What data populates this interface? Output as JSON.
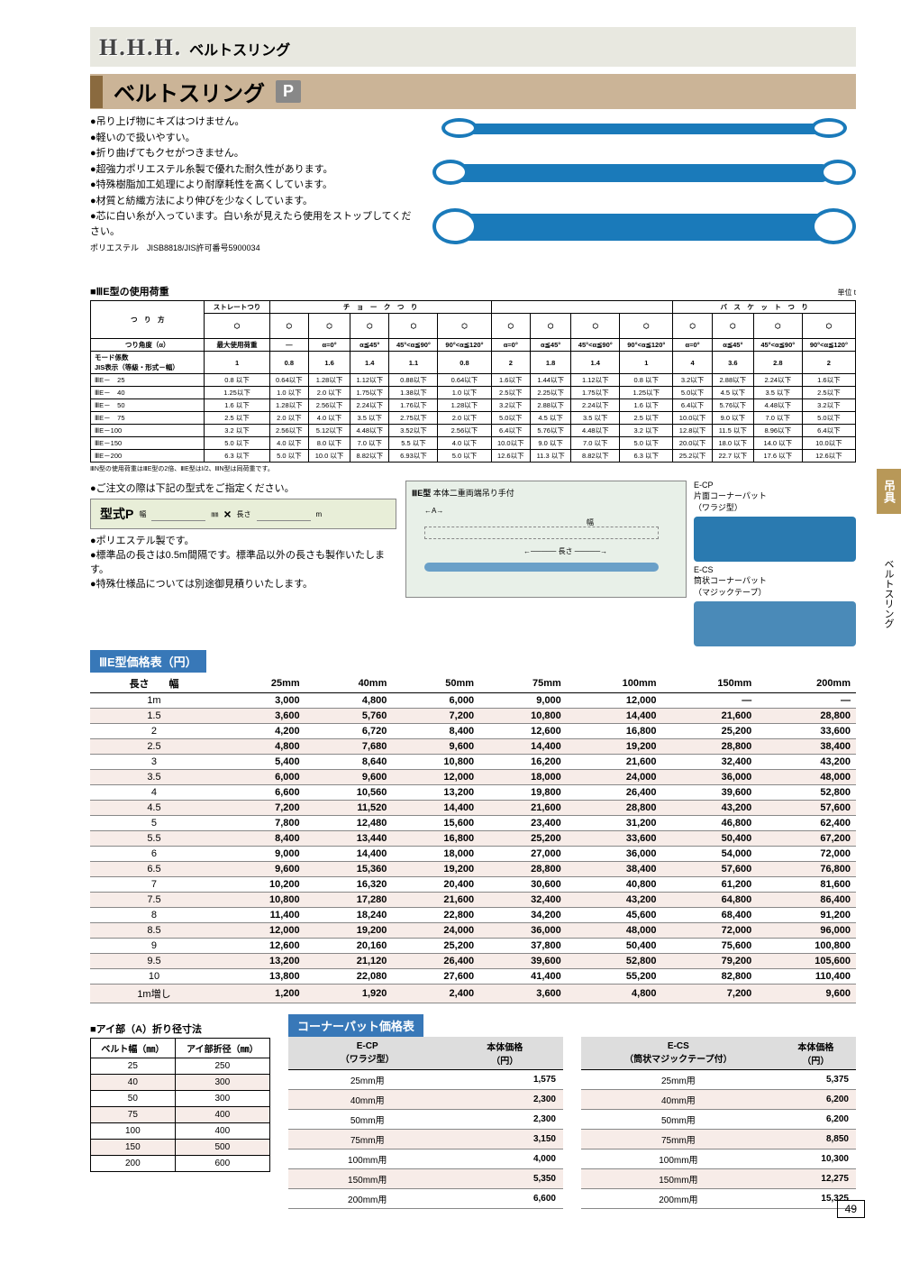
{
  "header": {
    "logo": "H.H.H.",
    "logo_sub": "ベルトスリング"
  },
  "title": {
    "text": "ベルトスリング",
    "badge": "P"
  },
  "side_tab": "吊具",
  "side_tab2": "ベルトスリング",
  "intro": [
    "●吊り上げ物にキズはつけません。",
    "●軽いので扱いやすい。",
    "●折り曲げてもクセがつきません。",
    "●超強力ポリエステル糸製で優れた耐久性があります。",
    "●特殊樹脂加工処理により耐摩耗性を高くしています。",
    "●材質と紡織方法により伸びを少なくしています。",
    "●芯に白い糸が入っています。白い糸が見えたら使用をストップしてください。"
  ],
  "intro_small": "ポリエステル　JISB8818/JIS許可番号5900034",
  "load_head": "■ⅢE型の使用荷重",
  "unit": "単位 t",
  "load_groups": [
    "つ　り　方",
    "ストレートつり",
    "チ　ョ　ー　ク　つ　り",
    "バ　ス　ケ　ッ　ト　つ　り"
  ],
  "row1_label": "つり角度（α）",
  "load_angles": [
    "最大使用荷重",
    "—",
    "α=0°",
    "α≦45°",
    "45°<α≦90°",
    "90°<α≦120°",
    "α=0°",
    "α≦45°",
    "45°<α≦90°",
    "90°<α≦120°",
    "α=0°",
    "α≦45°",
    "45°<α≦90°",
    "90°<α≦120°"
  ],
  "mode_label": "モード係数\nJIS表示（等級・形式－幅）",
  "load_modes": [
    "1",
    "0.8",
    "1.6",
    "1.4",
    "1.1",
    "0.8",
    "2",
    "1.8",
    "1.4",
    "1",
    "4",
    "3.6",
    "2.8",
    "2"
  ],
  "load_rows": [
    {
      "m": "ⅢE－　25",
      "v": [
        "0.8 以下",
        "0.64以下",
        "1.28以下",
        "1.12以下",
        "0.88以下",
        "0.64以下",
        "1.6以下",
        "1.44以下",
        "1.12以下",
        "0.8 以下",
        "3.2以下",
        "2.88以下",
        "2.24以下",
        "1.6以下"
      ]
    },
    {
      "m": "ⅢE－　40",
      "v": [
        "1.25以下",
        "1.0 以下",
        "2.0 以下",
        "1.75以下",
        "1.38以下",
        "1.0 以下",
        "2.5以下",
        "2.25以下",
        "1.75以下",
        "1.25以下",
        "5.0以下",
        "4.5 以下",
        "3.5 以下",
        "2.5以下"
      ]
    },
    {
      "m": "ⅢE－　50",
      "v": [
        "1.6 以下",
        "1.28以下",
        "2.56以下",
        "2.24以下",
        "1.76以下",
        "1.28以下",
        "3.2以下",
        "2.88以下",
        "2.24以下",
        "1.6 以下",
        "6.4以下",
        "5.76以下",
        "4.48以下",
        "3.2以下"
      ]
    },
    {
      "m": "ⅢE－　75",
      "v": [
        "2.5 以下",
        "2.0 以下",
        "4.0 以下",
        "3.5 以下",
        "2.75以下",
        "2.0 以下",
        "5.0以下",
        "4.5 以下",
        "3.5 以下",
        "2.5 以下",
        "10.0以下",
        "9.0 以下",
        "7.0 以下",
        "5.0以下"
      ]
    },
    {
      "m": "ⅢE－100",
      "v": [
        "3.2 以下",
        "2.56以下",
        "5.12以下",
        "4.48以下",
        "3.52以下",
        "2.56以下",
        "6.4以下",
        "5.76以下",
        "4.48以下",
        "3.2 以下",
        "12.8以下",
        "11.5 以下",
        "8.96以下",
        "6.4以下"
      ]
    },
    {
      "m": "ⅢE－150",
      "v": [
        "5.0 以下",
        "4.0 以下",
        "8.0 以下",
        "7.0 以下",
        "5.5 以下",
        "4.0 以下",
        "10.0以下",
        "9.0 以下",
        "7.0 以下",
        "5.0 以下",
        "20.0以下",
        "18.0 以下",
        "14.0 以下",
        "10.0以下"
      ]
    },
    {
      "m": "ⅢE－200",
      "v": [
        "6.3 以下",
        "5.0 以下",
        "10.0 以下",
        "8.82以下",
        "6.93以下",
        "5.0 以下",
        "12.6以下",
        "11.3 以下",
        "8.82以下",
        "6.3 以下",
        "25.2以下",
        "22.7 以下",
        "17.6 以下",
        "12.6以下"
      ]
    }
  ],
  "load_footnote": "ⅢN型の使用荷重はⅢE型の2倍、ⅢE型はⅠ/2、ⅢN型は同荷重です。",
  "order_note": "●ご注文の際は下記の型式をご指定ください。",
  "model_box": {
    "label": "型式P",
    "w": "幅",
    "x": "×",
    "l": "長さ",
    "wu": "㎜",
    "lu": "m"
  },
  "mid_notes": [
    "●ポリエステル製です。",
    "●標準品の長さは0.5m間隔です。標準品以外の長さも製作いたします。",
    "●特殊仕様品については別途御見積りいたします。"
  ],
  "diagram": {
    "title": "ⅢE型",
    "sub": "本体二重両端吊り手付",
    "a": "A",
    "len": "長さ",
    "w": "幅"
  },
  "corner_labels": {
    "ecp": "E-CP\n片面コーナーパット\n（ワラジ型）",
    "ecs": "E-CS\n筒状コーナーパット\n（マジックテープ）"
  },
  "price_head": "ⅢE型価格表（円）",
  "price_cols": [
    "",
    "25mm",
    "40mm",
    "50mm",
    "75mm",
    "100mm",
    "150mm",
    "200mm"
  ],
  "price_col0_head": "長さ　　幅",
  "price_rows": [
    [
      "1m",
      "3,000",
      "4,800",
      "6,000",
      "9,000",
      "12,000",
      "—",
      "—"
    ],
    [
      "1.5",
      "3,600",
      "5,760",
      "7,200",
      "10,800",
      "14,400",
      "21,600",
      "28,800"
    ],
    [
      "2",
      "4,200",
      "6,720",
      "8,400",
      "12,600",
      "16,800",
      "25,200",
      "33,600"
    ],
    [
      "2.5",
      "4,800",
      "7,680",
      "9,600",
      "14,400",
      "19,200",
      "28,800",
      "38,400"
    ],
    [
      "3",
      "5,400",
      "8,640",
      "10,800",
      "16,200",
      "21,600",
      "32,400",
      "43,200"
    ],
    [
      "3.5",
      "6,000",
      "9,600",
      "12,000",
      "18,000",
      "24,000",
      "36,000",
      "48,000"
    ],
    [
      "4",
      "6,600",
      "10,560",
      "13,200",
      "19,800",
      "26,400",
      "39,600",
      "52,800"
    ],
    [
      "4.5",
      "7,200",
      "11,520",
      "14,400",
      "21,600",
      "28,800",
      "43,200",
      "57,600"
    ],
    [
      "5",
      "7,800",
      "12,480",
      "15,600",
      "23,400",
      "31,200",
      "46,800",
      "62,400"
    ],
    [
      "5.5",
      "8,400",
      "13,440",
      "16,800",
      "25,200",
      "33,600",
      "50,400",
      "67,200"
    ],
    [
      "6",
      "9,000",
      "14,400",
      "18,000",
      "27,000",
      "36,000",
      "54,000",
      "72,000"
    ],
    [
      "6.5",
      "9,600",
      "15,360",
      "19,200",
      "28,800",
      "38,400",
      "57,600",
      "76,800"
    ],
    [
      "7",
      "10,200",
      "16,320",
      "20,400",
      "30,600",
      "40,800",
      "61,200",
      "81,600"
    ],
    [
      "7.5",
      "10,800",
      "17,280",
      "21,600",
      "32,400",
      "43,200",
      "64,800",
      "86,400"
    ],
    [
      "8",
      "11,400",
      "18,240",
      "22,800",
      "34,200",
      "45,600",
      "68,400",
      "91,200"
    ],
    [
      "8.5",
      "12,000",
      "19,200",
      "24,000",
      "36,000",
      "48,000",
      "72,000",
      "96,000"
    ],
    [
      "9",
      "12,600",
      "20,160",
      "25,200",
      "37,800",
      "50,400",
      "75,600",
      "100,800"
    ],
    [
      "9.5",
      "13,200",
      "21,120",
      "26,400",
      "39,600",
      "52,800",
      "79,200",
      "105,600"
    ],
    [
      "10",
      "13,800",
      "22,080",
      "27,600",
      "41,400",
      "55,200",
      "82,800",
      "110,400"
    ],
    [
      "1m増し",
      "1,200",
      "1,920",
      "2,400",
      "3,600",
      "4,800",
      "7,200",
      "9,600"
    ]
  ],
  "eye_head": "■アイ部（A）折り径寸法",
  "eye_cols": [
    "ベルト幅（㎜）",
    "アイ部折径（㎜）"
  ],
  "eye_rows": [
    [
      "25",
      "250"
    ],
    [
      "40",
      "300"
    ],
    [
      "50",
      "300"
    ],
    [
      "75",
      "400"
    ],
    [
      "100",
      "400"
    ],
    [
      "150",
      "500"
    ],
    [
      "200",
      "600"
    ]
  ],
  "corner_head": "コーナーパット価格表",
  "corner_ecp_cols": [
    "E-CP\n（ワラジ型）",
    "本体価格\n（円）"
  ],
  "corner_ecs_cols": [
    "E-CS\n（筒状マジックテープ付）",
    "本体価格\n（円）"
  ],
  "corner_ecp": [
    [
      "25mm用",
      "1,575"
    ],
    [
      "40mm用",
      "2,300"
    ],
    [
      "50mm用",
      "2,300"
    ],
    [
      "75mm用",
      "3,150"
    ],
    [
      "100mm用",
      "4,000"
    ],
    [
      "150mm用",
      "5,350"
    ],
    [
      "200mm用",
      "6,600"
    ]
  ],
  "corner_ecs": [
    [
      "25mm用",
      "5,375"
    ],
    [
      "40mm用",
      "6,200"
    ],
    [
      "50mm用",
      "6,200"
    ],
    [
      "75mm用",
      "8,850"
    ],
    [
      "100mm用",
      "10,300"
    ],
    [
      "150mm用",
      "12,275"
    ],
    [
      "200mm用",
      "15,325"
    ]
  ],
  "page_num": "49"
}
